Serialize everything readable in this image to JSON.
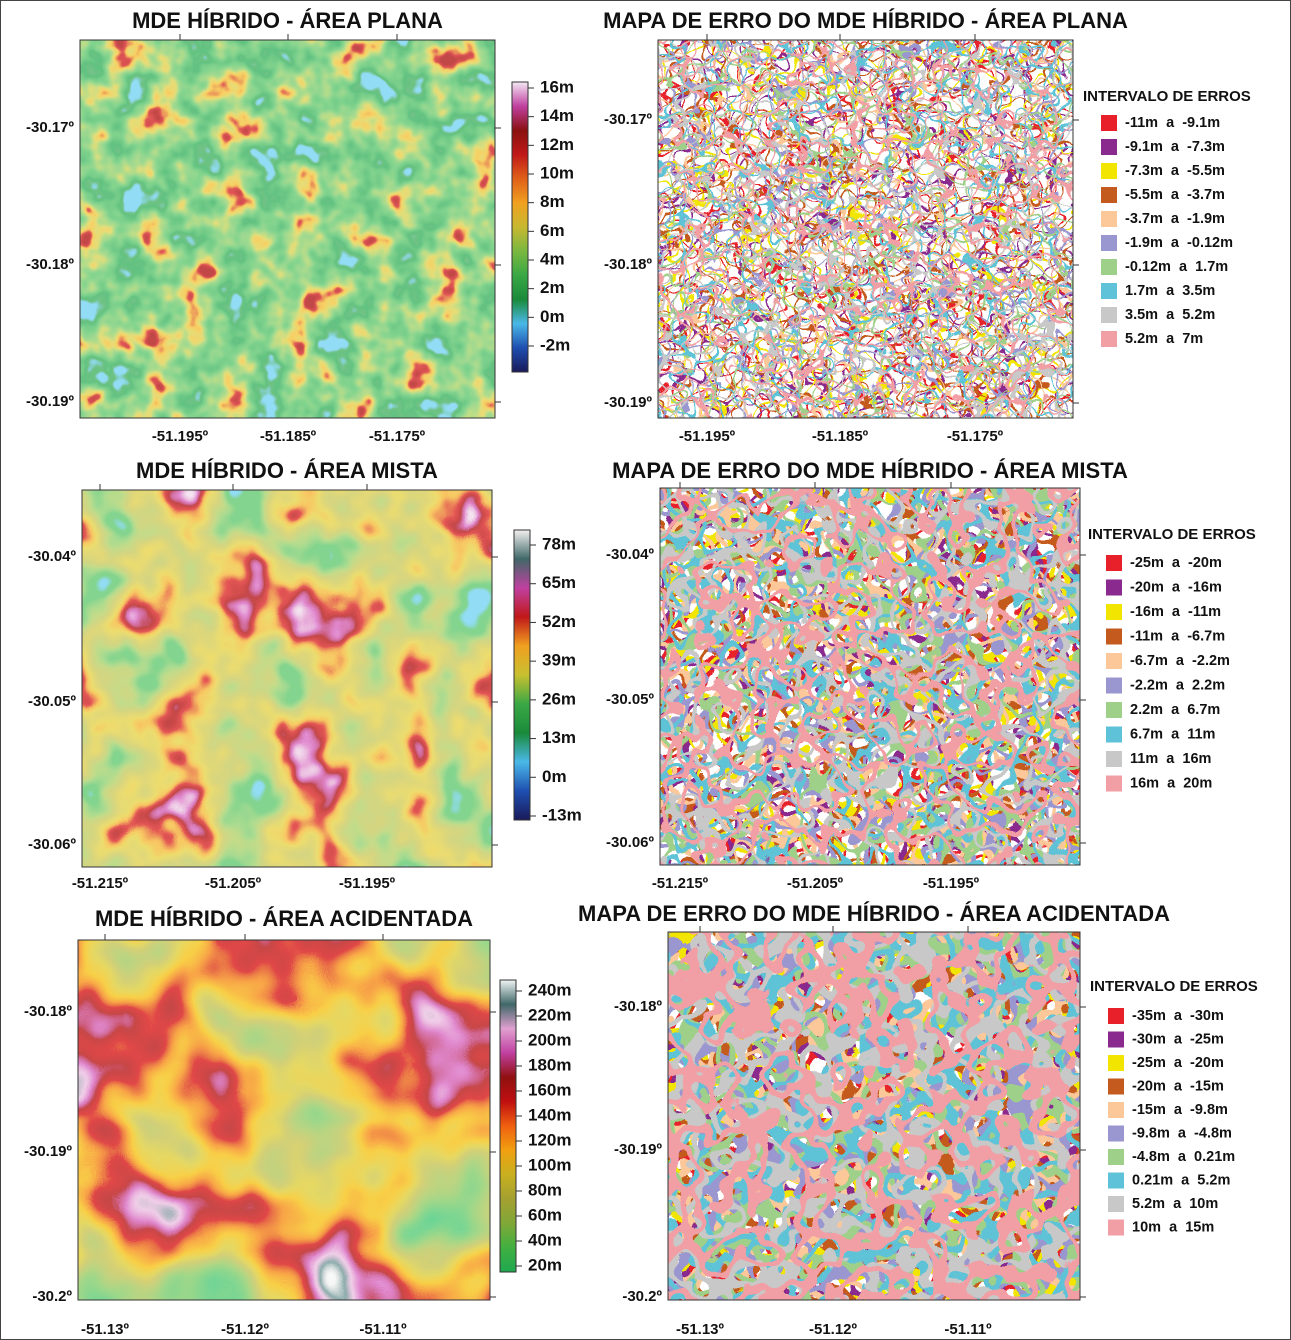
{
  "panels": [
    {
      "title": "MDE HÍBRIDO - ÁREA PLANA",
      "yticks": [
        "-30.17º",
        "-30.18º",
        "-30.19º"
      ],
      "xticks": [
        "-51.195º",
        "-51.185º",
        "-51.175º"
      ],
      "colorbar": [
        "16m",
        "14m",
        "12m",
        "10m",
        "8m",
        "6m",
        "4m",
        "2m",
        "0m",
        "-2m"
      ]
    },
    {
      "title": "MAPA DE ERRO DO MDE HÍBRIDO - ÁREA PLANA",
      "yticks": [
        "-30.17º",
        "-30.18º",
        "-30.19º"
      ],
      "xticks": [
        "-51.195º",
        "-51.185º",
        "-51.175º"
      ],
      "legend_title": "INTERVALO DE ERROS",
      "legend": [
        {
          "label": "-11m  a  -9.1m",
          "color": "#e8202a"
        },
        {
          "label": "-9.1m  a  -7.3m",
          "color": "#8b2a8e"
        },
        {
          "label": "-7.3m  a  -5.5m",
          "color": "#f2e600"
        },
        {
          "label": "-5.5m  a  -3.7m",
          "color": "#c45a1e"
        },
        {
          "label": "-3.7m  a  -1.9m",
          "color": "#fcc89a"
        },
        {
          "label": "-1.9m  a  -0.12m",
          "color": "#9a96cf"
        },
        {
          "label": "-0.12m  a  1.7m",
          "color": "#9fd08a"
        },
        {
          "label": "1.7m  a  3.5m",
          "color": "#5ec3d8"
        },
        {
          "label": "3.5m  a  5.2m",
          "color": "#c8c8c8"
        },
        {
          "label": "5.2m  a  7m",
          "color": "#f29ea5"
        }
      ]
    },
    {
      "title": "MDE HÍBRIDO - ÁREA MISTA",
      "yticks": [
        "-30.04º",
        "-30.05º",
        "-30.06º"
      ],
      "xticks": [
        "-51.215º",
        "-51.205º",
        "-51.195º"
      ],
      "colorbar": [
        "78m",
        "65m",
        "52m",
        "39m",
        "26m",
        "13m",
        "0m",
        "-13m"
      ]
    },
    {
      "title": "MAPA DE ERRO DO MDE HÍBRIDO - ÁREA MISTA",
      "yticks": [
        "-30.04º",
        "-30.05º",
        "-30.06º"
      ],
      "xticks": [
        "-51.215º",
        "-51.205º",
        "-51.195º"
      ],
      "legend_title": "INTERVALO DE ERROS",
      "legend": [
        {
          "label": "-25m  a  -20m",
          "color": "#e8202a"
        },
        {
          "label": "-20m  a  -16m",
          "color": "#8b2a8e"
        },
        {
          "label": "-16m  a  -11m",
          "color": "#f2e600"
        },
        {
          "label": "-11m  a  -6.7m",
          "color": "#c45a1e"
        },
        {
          "label": "-6.7m  a  -2.2m",
          "color": "#fcc89a"
        },
        {
          "label": "-2.2m  a  2.2m",
          "color": "#9a96cf"
        },
        {
          "label": "2.2m  a  6.7m",
          "color": "#9fd08a"
        },
        {
          "label": "6.7m  a  11m",
          "color": "#5ec3d8"
        },
        {
          "label": "11m  a  16m",
          "color": "#c8c8c8"
        },
        {
          "label": "16m  a  20m",
          "color": "#f29ea5"
        }
      ]
    },
    {
      "title": "MDE HÍBRIDO - ÁREA ACIDENTADA",
      "yticks": [
        "-30.18º",
        "-30.19º",
        "-30.2º"
      ],
      "xticks": [
        "-51.13º",
        "-51.12º",
        "-51.11º"
      ],
      "colorbar": [
        "240m",
        "220m",
        "200m",
        "180m",
        "160m",
        "140m",
        "120m",
        "100m",
        "80m",
        "60m",
        "40m",
        "20m"
      ]
    },
    {
      "title": "MAPA DE ERRO DO MDE HÍBRIDO - ÁREA ACIDENTADA",
      "yticks": [
        "-30.18º",
        "-30.19º",
        "-30.2º"
      ],
      "xticks": [
        "-51.13º",
        "-51.12º",
        "-51.11º"
      ],
      "legend_title": "INTERVALO DE ERROS",
      "legend": [
        {
          "label": "-35m  a  -30m",
          "color": "#e8202a"
        },
        {
          "label": "-30m  a  -25m",
          "color": "#8b2a8e"
        },
        {
          "label": "-25m  a  -20m",
          "color": "#f2e600"
        },
        {
          "label": "-20m  a  -15m",
          "color": "#c45a1e"
        },
        {
          "label": "-15m  a  -9.8m",
          "color": "#fcc89a"
        },
        {
          "label": "-9.8m  a  -4.8m",
          "color": "#9a96cf"
        },
        {
          "label": "-4.8m  a  0.21m",
          "color": "#9fd08a"
        },
        {
          "label": "0.21m  a  5.2m",
          "color": "#5ec3d8"
        },
        {
          "label": "5.2m  a  10m",
          "color": "#c8c8c8"
        },
        {
          "label": "10m  a  15m",
          "color": "#f29ea5"
        }
      ]
    }
  ]
}
